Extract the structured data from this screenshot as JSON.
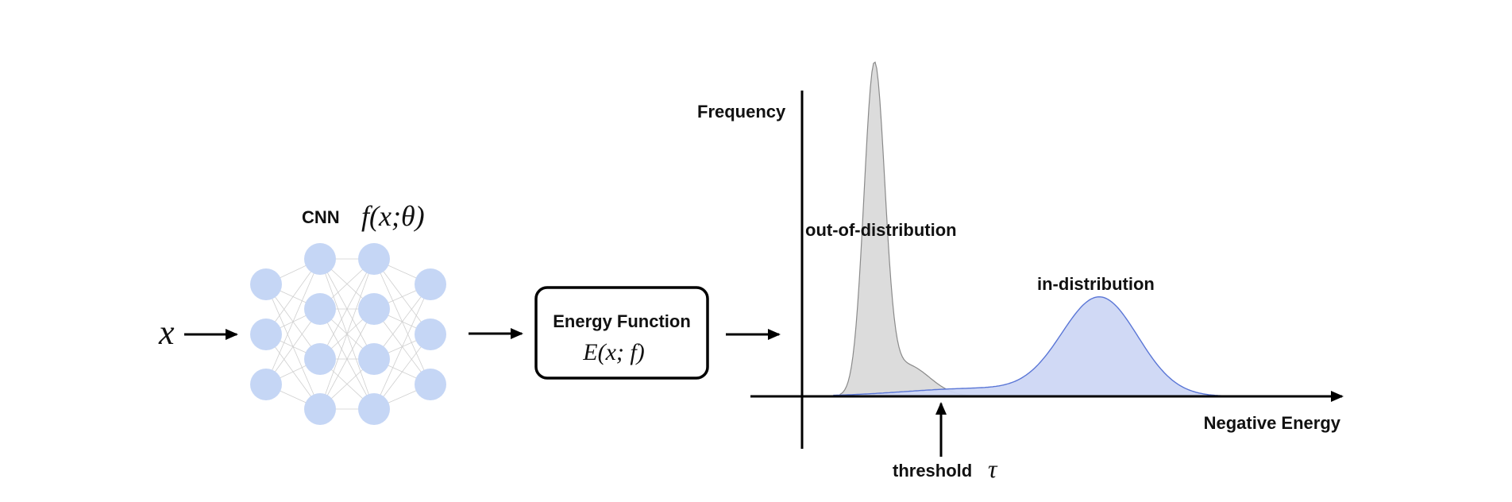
{
  "input_symbol": "x",
  "network": {
    "label": "CNN",
    "function_label": "f(x;θ)"
  },
  "energy_box": {
    "title": "Energy Function",
    "formula": "E(x; f)"
  },
  "plot": {
    "y_axis_label": "Frequency",
    "x_axis_label": "Negative Energy",
    "ood_label": "out-of-distribution",
    "id_label": "in-distribution",
    "threshold_label": "threshold",
    "threshold_symbol": "τ"
  },
  "colors": {
    "node": "#c5d6f5",
    "ood_fill": "#dcdcdc",
    "ood_stroke": "#8a8a8a",
    "id_fill": "#cdd7f4",
    "id_stroke": "#5a76d6"
  }
}
